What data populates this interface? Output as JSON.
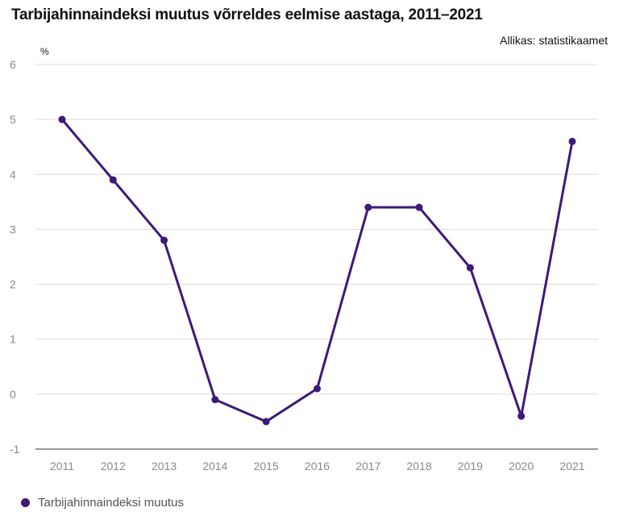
{
  "colors": {
    "series": "#3d1a78",
    "grid": "#dcdcdc",
    "axis": "#333333"
  },
  "chart_data": {
    "type": "line",
    "title": "Tarbijahinnaindeksi muutus võrreldes eelmise aastaga, 2011–2021",
    "source": "Allikas: statistikaamet",
    "unit_label": "%",
    "xlabel": "",
    "ylabel": "",
    "x": [
      "2011",
      "2012",
      "2013",
      "2014",
      "2015",
      "2016",
      "2017",
      "2018",
      "2019",
      "2020",
      "2021"
    ],
    "ylim": [
      -1,
      6
    ],
    "yticks": [
      -1,
      0,
      1,
      2,
      3,
      4,
      5,
      6
    ],
    "grid": true,
    "legend_position": "bottom-left",
    "series": [
      {
        "name": "Tarbijahinnaindeksi muutus",
        "values": [
          5.0,
          3.9,
          2.8,
          -0.1,
          -0.5,
          0.1,
          3.4,
          3.4,
          2.3,
          -0.4,
          4.6
        ]
      }
    ]
  }
}
